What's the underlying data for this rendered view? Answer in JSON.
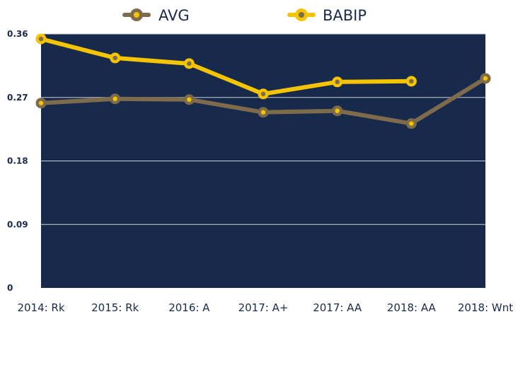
{
  "chart_data": {
    "type": "line",
    "categories": [
      "2014: Rk",
      "2015: Rk",
      "2016: A",
      "2017: A+",
      "2017: AA",
      "2018: AA",
      "2018:  Wnt"
    ],
    "series": [
      {
        "name": "AVG",
        "color": "#7d6b4c",
        "values": [
          0.262,
          0.268,
          0.267,
          0.249,
          0.251,
          0.233,
          0.297
        ]
      },
      {
        "name": "BABIP",
        "color": "#f5c400",
        "values": [
          0.353,
          0.326,
          0.318,
          0.275,
          0.292,
          0.293,
          null
        ]
      }
    ],
    "y_ticks": [
      "0",
      "0.09",
      "0.18",
      "0.27",
      "0.36"
    ],
    "ylim": [
      0,
      0.36
    ],
    "title": "",
    "xlabel": "",
    "ylabel": "",
    "grid": true,
    "legend_position": "top",
    "plot_background": "#172a4c"
  }
}
